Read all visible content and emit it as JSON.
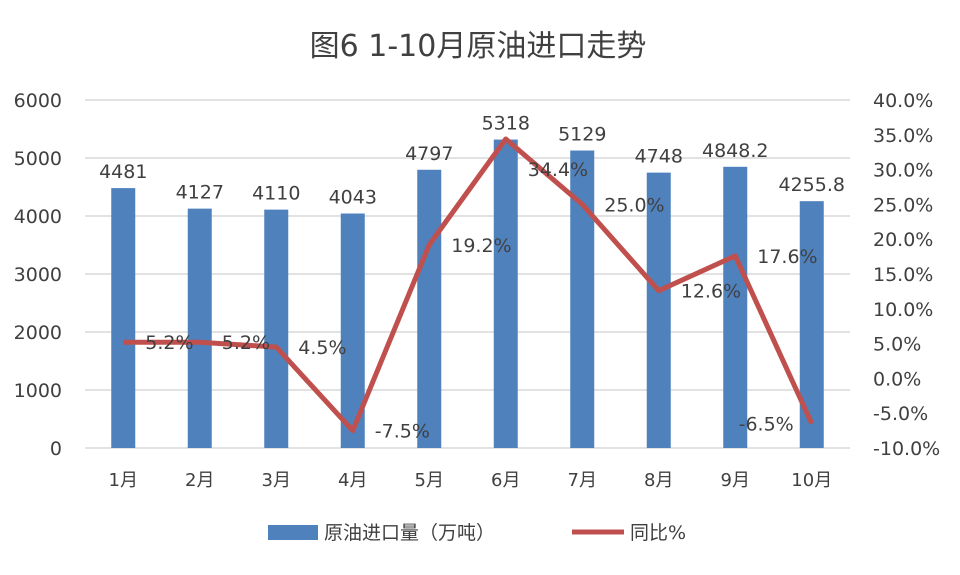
{
  "chart_data": {
    "type": "bar",
    "title": "图6  1-10月原油进口走势",
    "categories": [
      "1月",
      "2月",
      "3月",
      "4月",
      "5月",
      "6月",
      "7月",
      "8月",
      "9月",
      "10月"
    ],
    "series": [
      {
        "name": "原油进口量（万吨）",
        "type": "bar",
        "axis": "left",
        "color": "#4f81bd",
        "values": [
          4481,
          4127,
          4110,
          4043,
          4797,
          5318,
          5129,
          4748,
          4848.2,
          4255.8
        ],
        "labels": [
          "4481",
          "4127",
          "4110",
          "4043",
          "4797",
          "5318",
          "5129",
          "4748",
          "4848.2",
          "4255.8"
        ]
      },
      {
        "name": "同比%",
        "type": "line",
        "axis": "right",
        "color": "#c0504d",
        "values": [
          5.2,
          5.2,
          4.5,
          -7.5,
          19.2,
          34.4,
          25.0,
          12.6,
          17.6,
          -6.5
        ],
        "labels": [
          "5.2%",
          "5.2%",
          "4.5%",
          "-7.5%",
          "19.2%",
          "34.4%",
          "25.0%",
          "12.6%",
          "17.6%",
          "-6.5%"
        ]
      }
    ],
    "left_axis": {
      "ylim": [
        0,
        6000
      ],
      "ticks": [
        "0",
        "1000",
        "2000",
        "3000",
        "4000",
        "5000",
        "6000"
      ]
    },
    "right_axis": {
      "ylim": [
        -10,
        40
      ],
      "ticks": [
        "-10.0%",
        "-5.0%",
        "0.0%",
        "5.0%",
        "10.0%",
        "15.0%",
        "20.0%",
        "25.0%",
        "30.0%",
        "35.0%",
        "40.0%"
      ]
    },
    "grid": true,
    "legend": "bottom"
  }
}
